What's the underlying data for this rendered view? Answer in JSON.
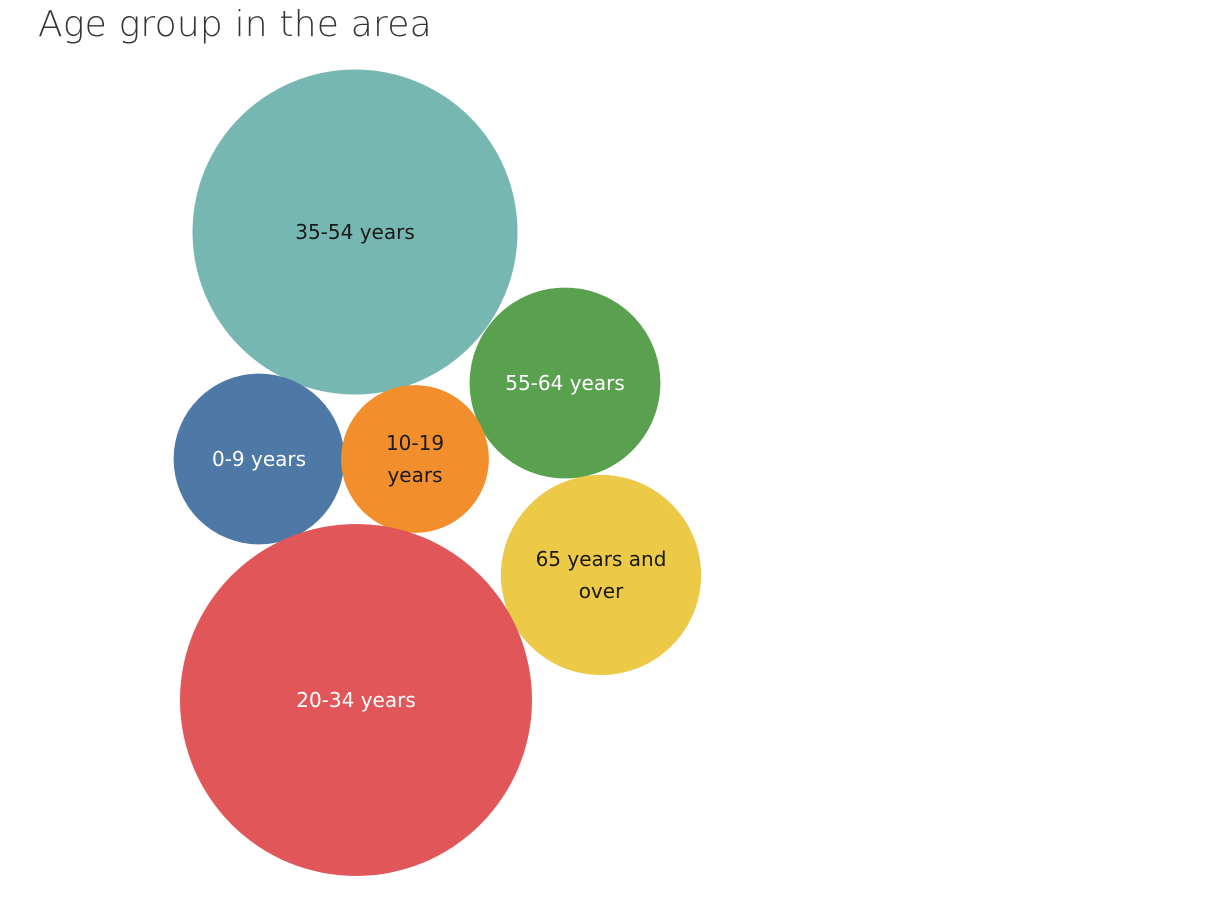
{
  "chart_data": {
    "type": "bubble",
    "title": "Age group in the area",
    "items": [
      {
        "label": "35-54 years",
        "lines": [
          "35-54 years"
        ],
        "value": 29,
        "color": "#76b7b2",
        "text_color": "#1a1a1a"
      },
      {
        "label": "55-64 years",
        "lines": [
          "55-64 years"
        ],
        "value": 10,
        "color": "#59a14f",
        "text_color": "#ffffff"
      },
      {
        "label": "0-9 years",
        "lines": [
          "0-9 years"
        ],
        "value": 8,
        "color": "#4e79a7",
        "text_color": "#ffffff"
      },
      {
        "label": "10-19 years",
        "lines": [
          "10-19",
          "years"
        ],
        "value": 6,
        "color": "#f28e2b",
        "text_color": "#1a1a1a"
      },
      {
        "label": "65 years and over",
        "lines": [
          "65 years and",
          "over"
        ],
        "value": 11,
        "color": "#edc948",
        "text_color": "#1a1a1a"
      },
      {
        "label": "20-34 years",
        "lines": [
          "20-34 years"
        ],
        "value": 34,
        "color": "#e15759",
        "text_color": "#ffffff"
      }
    ]
  }
}
